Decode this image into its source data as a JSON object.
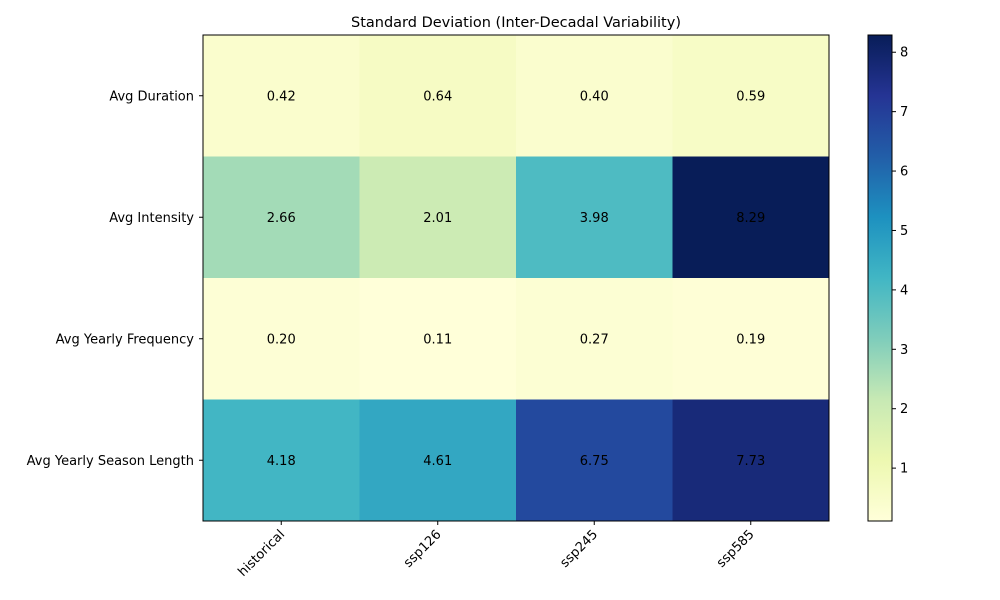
{
  "chart_data": {
    "type": "heatmap",
    "title": "Standard Deviation (Inter-Decadal Variability)",
    "xlabel": "",
    "ylabel": "",
    "columns": [
      "historical",
      "ssp126",
      "ssp245",
      "ssp585"
    ],
    "rows": [
      "Avg Duration",
      "Avg Intensity",
      "Avg Yearly Frequency",
      "Avg Yearly Season Length"
    ],
    "values": [
      [
        0.42,
        0.64,
        0.4,
        0.59
      ],
      [
        2.66,
        2.01,
        3.98,
        8.29
      ],
      [
        0.2,
        0.11,
        0.27,
        0.19
      ],
      [
        4.18,
        4.61,
        6.75,
        7.73
      ]
    ],
    "value_labels": [
      [
        "0.42",
        "0.64",
        "0.40",
        "0.59"
      ],
      [
        "2.66",
        "2.01",
        "3.98",
        "8.29"
      ],
      [
        "0.20",
        "0.11",
        "0.27",
        "0.19"
      ],
      [
        "4.18",
        "4.61",
        "6.75",
        "7.73"
      ]
    ],
    "colormap": "YlGnBu",
    "color_range": [
      0.11,
      8.29
    ],
    "colorbar_ticks": [
      1,
      2,
      3,
      4,
      5,
      6,
      7,
      8
    ],
    "colorbar_tick_labels": [
      "1",
      "2",
      "3",
      "4",
      "5",
      "6",
      "7",
      "8"
    ],
    "grid": false,
    "legend": "colorbar-right"
  }
}
